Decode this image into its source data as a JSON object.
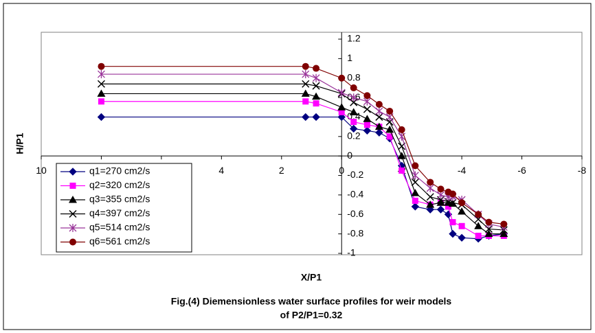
{
  "chart_data": {
    "type": "line",
    "title": [
      "Fig.(4) Diemensionless water surface profiles for weir models",
      "of P2/P1=0.32"
    ],
    "xlabel": "X/P1",
    "ylabel": "H/P1",
    "x": [
      8,
      1.2,
      0.85,
      0,
      -0.4,
      -0.85,
      -1.25,
      -1.6,
      -2.0,
      -2.45,
      -2.95,
      -3.3,
      -3.55,
      -3.7,
      -4.0,
      -4.55,
      -4.9,
      -5.4
    ],
    "series": [
      {
        "name": "q1=270 cm2/s",
        "color": "#000080",
        "marker": "diamond",
        "values": [
          0.4,
          0.4,
          0.4,
          0.4,
          0.28,
          0.26,
          0.24,
          0.18,
          -0.1,
          -0.52,
          -0.55,
          -0.55,
          -0.6,
          -0.8,
          -0.84,
          -0.85,
          -0.82,
          -0.8
        ]
      },
      {
        "name": "q2=320 cm2/s",
        "color": "#ff00ff",
        "marker": "square",
        "values": [
          0.56,
          0.56,
          0.54,
          0.45,
          0.35,
          0.32,
          0.3,
          0.2,
          -0.15,
          -0.46,
          -0.5,
          -0.48,
          -0.52,
          -0.68,
          -0.72,
          -0.82,
          -0.82,
          -0.82
        ]
      },
      {
        "name": "q3=355 cm2/s",
        "color": "#000000",
        "marker": "triangle",
        "values": [
          0.64,
          0.64,
          0.61,
          0.5,
          0.45,
          0.38,
          0.3,
          0.27,
          0,
          -0.38,
          -0.5,
          -0.48,
          -0.48,
          -0.49,
          -0.57,
          -0.72,
          -0.8,
          -0.8
        ]
      },
      {
        "name": "q4=397 cm2/s",
        "color": "#000000",
        "marker": "cross",
        "values": [
          0.74,
          0.74,
          0.72,
          0.64,
          0.55,
          0.48,
          0.4,
          0.35,
          0.1,
          -0.27,
          -0.42,
          -0.45,
          -0.47,
          -0.48,
          -0.5,
          -0.65,
          -0.75,
          -0.76
        ]
      },
      {
        "name": "q5=514 cm2/s",
        "color": "#993399",
        "marker": "star",
        "values": [
          0.84,
          0.84,
          0.8,
          0.65,
          0.6,
          0.56,
          0.46,
          0.4,
          0.2,
          -0.2,
          -0.33,
          -0.4,
          -0.42,
          -0.42,
          -0.45,
          -0.6,
          -0.7,
          -0.73
        ]
      },
      {
        "name": "q6=561 cm2/s",
        "color": "#800000",
        "marker": "circle",
        "values": [
          0.92,
          0.92,
          0.9,
          0.8,
          0.7,
          0.62,
          0.53,
          0.46,
          0.27,
          -0.1,
          -0.27,
          -0.34,
          -0.37,
          -0.39,
          -0.48,
          -0.6,
          -0.68,
          -0.7
        ]
      }
    ],
    "xlim": [
      10,
      -8
    ],
    "xticks": [
      10,
      8,
      6,
      4,
      2,
      0,
      -2,
      -4,
      -6,
      -8
    ],
    "ylim": [
      -1,
      1.2
    ],
    "yticks": [
      -1,
      -0.8,
      -0.6,
      -0.4,
      -0.2,
      0,
      0.2,
      0.4,
      0.6,
      0.8,
      1,
      1.2
    ]
  }
}
